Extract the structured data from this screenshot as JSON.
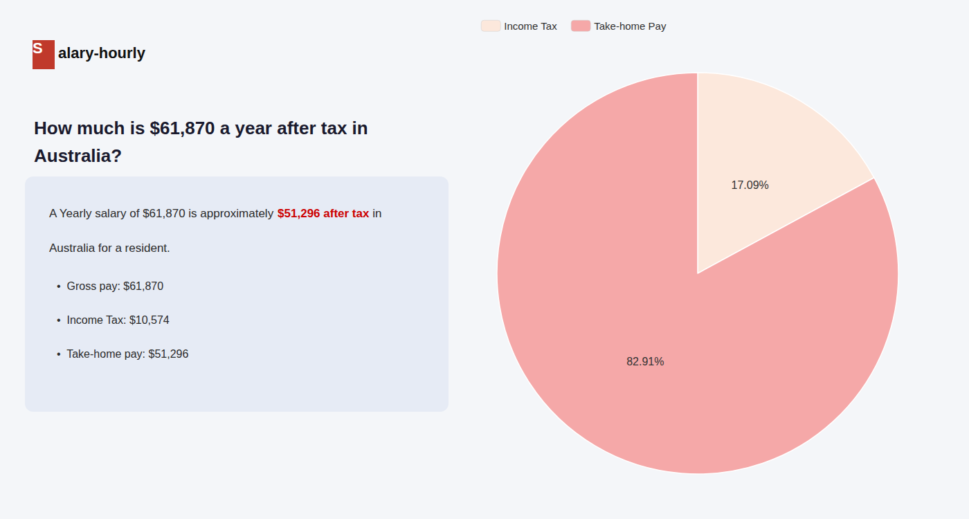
{
  "chart_data": {
    "type": "pie",
    "title": "How much is $61,870 a year after tax in\nAustralia?",
    "categories": [
      "Income Tax",
      "Take-home Pay"
    ],
    "values": [
      17.09,
      82.91
    ],
    "value_labels": [
      "17.09%",
      "82.91%"
    ],
    "data_labels": true,
    "colors": [
      "#fce8dc",
      "#f5a8a8"
    ],
    "legend": "upper left",
    "annotations": [
      "S",
      "alary-hourly",
      "A Yearly salary of $61,870 is approximately ",
      "$51,296 after tax",
      " in",
      "Australia for a resident.",
      "•  Gross pay: $61,870",
      "•  Income Tax: $10,574",
      "•  Take-home pay: $51,296"
    ]
  }
}
